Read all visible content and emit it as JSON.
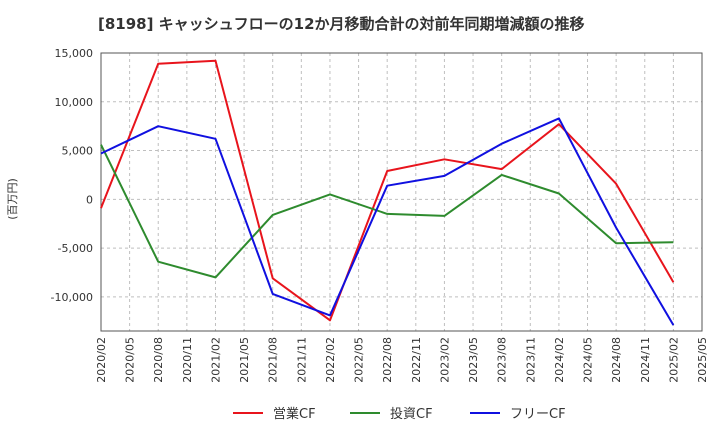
{
  "chart_data": {
    "type": "line",
    "title": "[8198]  キャッシュフローの12か月移動合計の対前年同期増減額の推移",
    "ylabel": "(百万円)",
    "xlabel": "",
    "ylim": [
      -13500,
      15000
    ],
    "yticks": [
      15000,
      10000,
      5000,
      0,
      -5000,
      -10000
    ],
    "ytick_labels": [
      "15,000",
      "10,000",
      "5,000",
      "0",
      "-5,000",
      "-10,000"
    ],
    "categories": [
      "2020/02",
      "2020/05",
      "2020/08",
      "2020/11",
      "2021/02",
      "2021/05",
      "2021/08",
      "2021/11",
      "2022/02",
      "2022/05",
      "2022/08",
      "2022/11",
      "2023/02",
      "2023/05",
      "2023/08",
      "2023/11",
      "2024/02",
      "2024/05",
      "2024/08",
      "2024/11",
      "2025/02",
      "2025/05"
    ],
    "grid": true,
    "legend_position": "bottom",
    "series": [
      {
        "name": "営業CF",
        "color": "#e8141c",
        "x": [
          "2020/02",
          "2020/08",
          "2021/02",
          "2021/08",
          "2022/02",
          "2022/08",
          "2023/02",
          "2023/08",
          "2024/02",
          "2024/08",
          "2025/02"
        ],
        "values": [
          -900,
          13900,
          14200,
          -8100,
          -12400,
          2900,
          4100,
          3100,
          7700,
          1600,
          -8500
        ]
      },
      {
        "name": "投資CF",
        "color": "#2e8b2e",
        "x": [
          "2020/02",
          "2020/08",
          "2021/02",
          "2021/08",
          "2022/02",
          "2022/08",
          "2023/02",
          "2023/08",
          "2024/02",
          "2024/08",
          "2025/02"
        ],
        "values": [
          5600,
          -6400,
          -8000,
          -1600,
          500,
          -1500,
          -1700,
          2500,
          600,
          -4500,
          -4400
        ]
      },
      {
        "name": "フリーCF",
        "color": "#1010e0",
        "x": [
          "2020/02",
          "2020/08",
          "2021/02",
          "2021/08",
          "2022/02",
          "2022/08",
          "2023/02",
          "2023/08",
          "2024/02",
          "2024/08",
          "2025/02"
        ],
        "values": [
          4700,
          7500,
          6200,
          -9700,
          -11900,
          1400,
          2400,
          5700,
          8300,
          -2900,
          -12900
        ]
      }
    ]
  }
}
